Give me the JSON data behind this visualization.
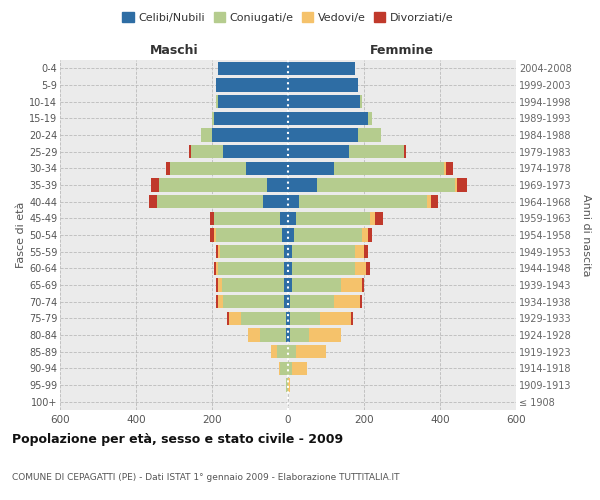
{
  "age_groups": [
    "100+",
    "95-99",
    "90-94",
    "85-89",
    "80-84",
    "75-79",
    "70-74",
    "65-69",
    "60-64",
    "55-59",
    "50-54",
    "45-49",
    "40-44",
    "35-39",
    "30-34",
    "25-29",
    "20-24",
    "15-19",
    "10-14",
    "5-9",
    "0-4"
  ],
  "birth_years": [
    "≤ 1908",
    "1909-1913",
    "1914-1918",
    "1919-1923",
    "1924-1928",
    "1929-1933",
    "1934-1938",
    "1939-1943",
    "1944-1948",
    "1949-1953",
    "1954-1958",
    "1959-1963",
    "1964-1968",
    "1969-1973",
    "1974-1978",
    "1979-1983",
    "1984-1988",
    "1989-1993",
    "1994-1998",
    "1999-2003",
    "2004-2008"
  ],
  "maschi": {
    "celibi": [
      0,
      0,
      0,
      0,
      5,
      5,
      10,
      10,
      10,
      10,
      15,
      20,
      65,
      55,
      110,
      170,
      200,
      195,
      185,
      190,
      185
    ],
    "coniugati": [
      0,
      5,
      20,
      30,
      70,
      120,
      160,
      165,
      175,
      170,
      175,
      175,
      280,
      285,
      200,
      85,
      30,
      5,
      5,
      0,
      0
    ],
    "vedovi": [
      0,
      0,
      5,
      15,
      30,
      30,
      15,
      10,
      5,
      5,
      5,
      0,
      0,
      0,
      0,
      0,
      0,
      0,
      0,
      0,
      0
    ],
    "divorziati": [
      0,
      0,
      0,
      0,
      0,
      5,
      5,
      5,
      5,
      5,
      10,
      10,
      20,
      20,
      10,
      5,
      0,
      0,
      0,
      0,
      0
    ]
  },
  "femmine": {
    "nubili": [
      0,
      0,
      0,
      0,
      5,
      5,
      5,
      10,
      10,
      10,
      15,
      20,
      30,
      75,
      120,
      160,
      185,
      210,
      190,
      185,
      175
    ],
    "coniugate": [
      0,
      0,
      10,
      20,
      50,
      80,
      115,
      130,
      165,
      165,
      180,
      195,
      335,
      365,
      290,
      145,
      60,
      10,
      5,
      0,
      0
    ],
    "vedove": [
      0,
      5,
      40,
      80,
      85,
      80,
      70,
      55,
      30,
      25,
      15,
      15,
      10,
      5,
      5,
      0,
      0,
      0,
      0,
      0,
      0
    ],
    "divorziate": [
      0,
      0,
      0,
      0,
      0,
      5,
      5,
      5,
      10,
      10,
      10,
      20,
      20,
      25,
      20,
      5,
      0,
      0,
      0,
      0,
      0
    ]
  },
  "colors": {
    "celibi": "#2E6DA4",
    "coniugati": "#B5CC8E",
    "vedovi": "#F5C26B",
    "divorziati": "#C0392B"
  },
  "title": "Popolazione per età, sesso e stato civile - 2009",
  "subtitle": "COMUNE DI CEPAGATTI (PE) - Dati ISTAT 1° gennaio 2009 - Elaborazione TUTTITALIA.IT",
  "xlabel_left": "Maschi",
  "xlabel_right": "Femmine",
  "ylabel_left": "Fasce di età",
  "ylabel_right": "Anni di nascita",
  "xlim": 600,
  "bg_color": "#ffffff",
  "grid_color": "#cccccc",
  "legend_labels": [
    "Celibi/Nubili",
    "Coniugati/e",
    "Vedovi/e",
    "Divorziati/e"
  ]
}
